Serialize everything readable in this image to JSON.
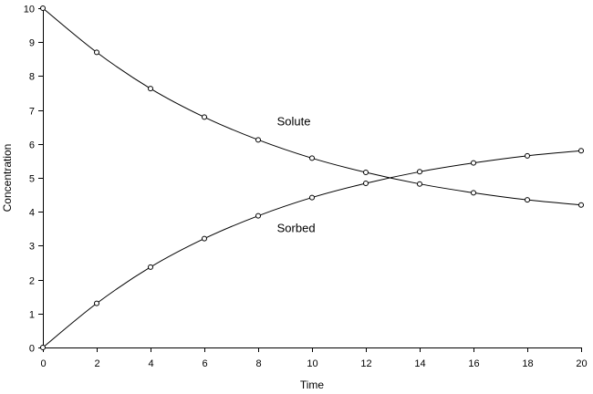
{
  "chart_data": {
    "type": "line",
    "xlabel": "Time",
    "ylabel": "Concentration",
    "xlim": [
      0,
      20
    ],
    "ylim": [
      0,
      10
    ],
    "x_ticks": [
      0,
      2,
      4,
      6,
      8,
      10,
      12,
      14,
      16,
      18,
      20
    ],
    "y_ticks": [
      0,
      1,
      2,
      3,
      4,
      5,
      6,
      7,
      8,
      9,
      10
    ],
    "grid": false,
    "legend": "none",
    "x": [
      0,
      2,
      4,
      6,
      8,
      10,
      12,
      14,
      16,
      18,
      20
    ],
    "series": [
      {
        "name": "Solute",
        "values": [
          10,
          8.7,
          7.63,
          6.79,
          6.12,
          5.58,
          5.16,
          4.82,
          4.56,
          4.35,
          4.2
        ],
        "color": "#000000"
      },
      {
        "name": "Sorbed",
        "values": [
          0,
          1.3,
          2.37,
          3.21,
          3.88,
          4.42,
          4.84,
          5.18,
          5.44,
          5.65,
          5.8
        ],
        "color": "#000000"
      }
    ],
    "annotations": [
      {
        "text": "Solute",
        "x": 8.7,
        "y": 6.55
      },
      {
        "text": "Sorbed",
        "x": 8.7,
        "y": 3.4
      }
    ]
  }
}
